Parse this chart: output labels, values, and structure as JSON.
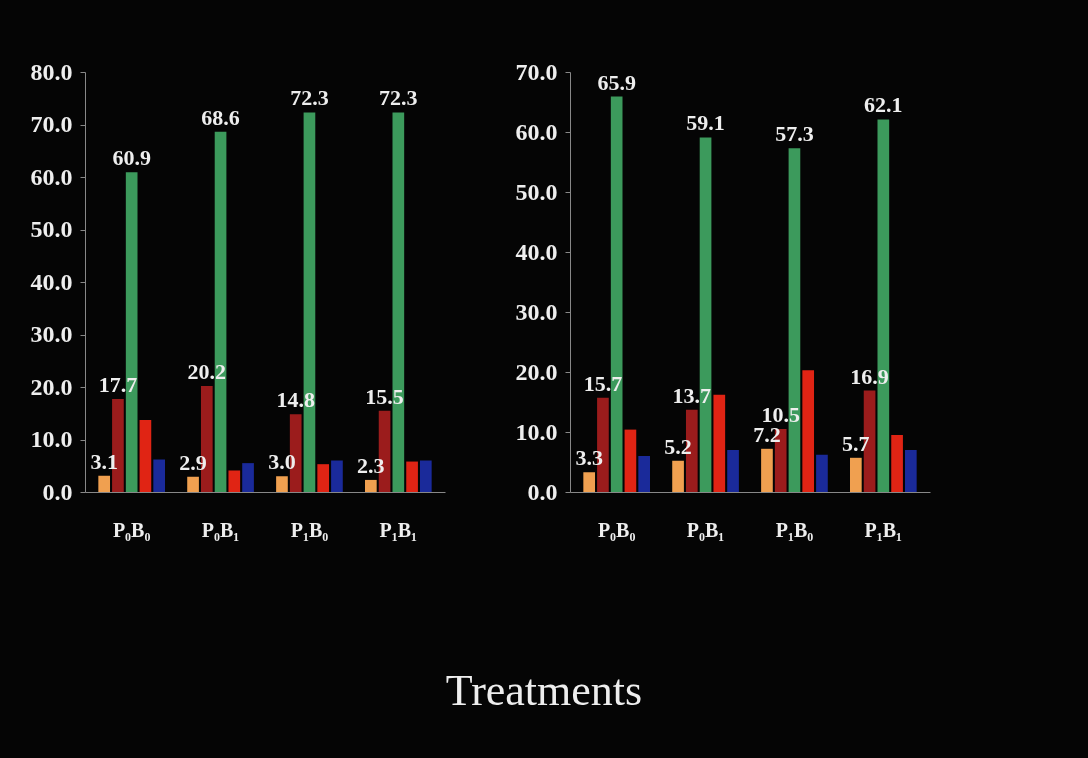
{
  "chart_data": [
    {
      "type": "bar",
      "categories": [
        "P₀B₀",
        "P₀B₁",
        "P₁B₀",
        "P₁B₁"
      ],
      "ylim": [
        0,
        80
      ],
      "yticks": [
        {
          "value": 0,
          "label": "0.0"
        },
        {
          "value": 10,
          "label": "10.0"
        },
        {
          "value": 20,
          "label": "20.0"
        },
        {
          "value": 30,
          "label": "30.0"
        },
        {
          "value": 40,
          "label": "40.0"
        },
        {
          "value": 50,
          "label": "50.0"
        },
        {
          "value": 60,
          "label": "60.0"
        },
        {
          "value": 70,
          "label": "70.0"
        },
        {
          "value": 80,
          "label": "80.0"
        }
      ],
      "series": [
        {
          "color": "#f0a050",
          "values": [
            3.1,
            2.9,
            3.0,
            2.3
          ],
          "value_labels": [
            "3.1",
            "2.9",
            "3.0",
            "2.3"
          ]
        },
        {
          "color": "#9b1c1c",
          "values": [
            17.7,
            20.2,
            14.8,
            15.5
          ],
          "value_labels": [
            "17.7",
            "20.2",
            "14.8",
            "15.5"
          ]
        },
        {
          "color": "#3c9a5c",
          "values": [
            60.9,
            68.6,
            72.3,
            72.3
          ],
          "value_labels": [
            "60.9",
            "68.6",
            "72.3",
            "72.3"
          ]
        },
        {
          "color": "#e02414",
          "values": [
            13.7,
            4.1,
            5.3,
            5.8
          ]
        },
        {
          "color": "#1a2a9a",
          "values": [
            6.2,
            5.5,
            6.0,
            6.0
          ]
        }
      ]
    },
    {
      "type": "bar",
      "categories": [
        "P₀B₀",
        "P₀B₁",
        "P₁B₀",
        "P₁B₁"
      ],
      "xlabel": "Treatments",
      "ylim": [
        0,
        70
      ],
      "yticks": [
        {
          "value": 0,
          "label": "0.0"
        },
        {
          "value": 10,
          "label": "10.0"
        },
        {
          "value": 20,
          "label": "20.0"
        },
        {
          "value": 30,
          "label": "30.0"
        },
        {
          "value": 40,
          "label": "40.0"
        },
        {
          "value": 50,
          "label": "50.0"
        },
        {
          "value": 60,
          "label": "60.0"
        },
        {
          "value": 70,
          "label": "70.0"
        }
      ],
      "series": [
        {
          "color": "#f0a050",
          "values": [
            3.3,
            5.2,
            7.2,
            5.7
          ],
          "value_labels": [
            "3.3",
            "5.2",
            "7.2",
            "5.7"
          ]
        },
        {
          "color": "#9b1c1c",
          "values": [
            15.7,
            13.7,
            10.5,
            16.9
          ],
          "value_labels": [
            "15.7",
            "13.7",
            "10.5",
            "16.9"
          ]
        },
        {
          "color": "#3c9a5c",
          "values": [
            65.9,
            59.1,
            57.3,
            62.1
          ],
          "value_labels": [
            "65.9",
            "59.1",
            "57.3",
            "62.1"
          ]
        },
        {
          "color": "#e02414",
          "values": [
            10.4,
            16.2,
            20.3,
            9.5
          ]
        },
        {
          "color": "#1a2a9a",
          "values": [
            6.0,
            7.0,
            6.2,
            7.0
          ]
        }
      ]
    }
  ]
}
